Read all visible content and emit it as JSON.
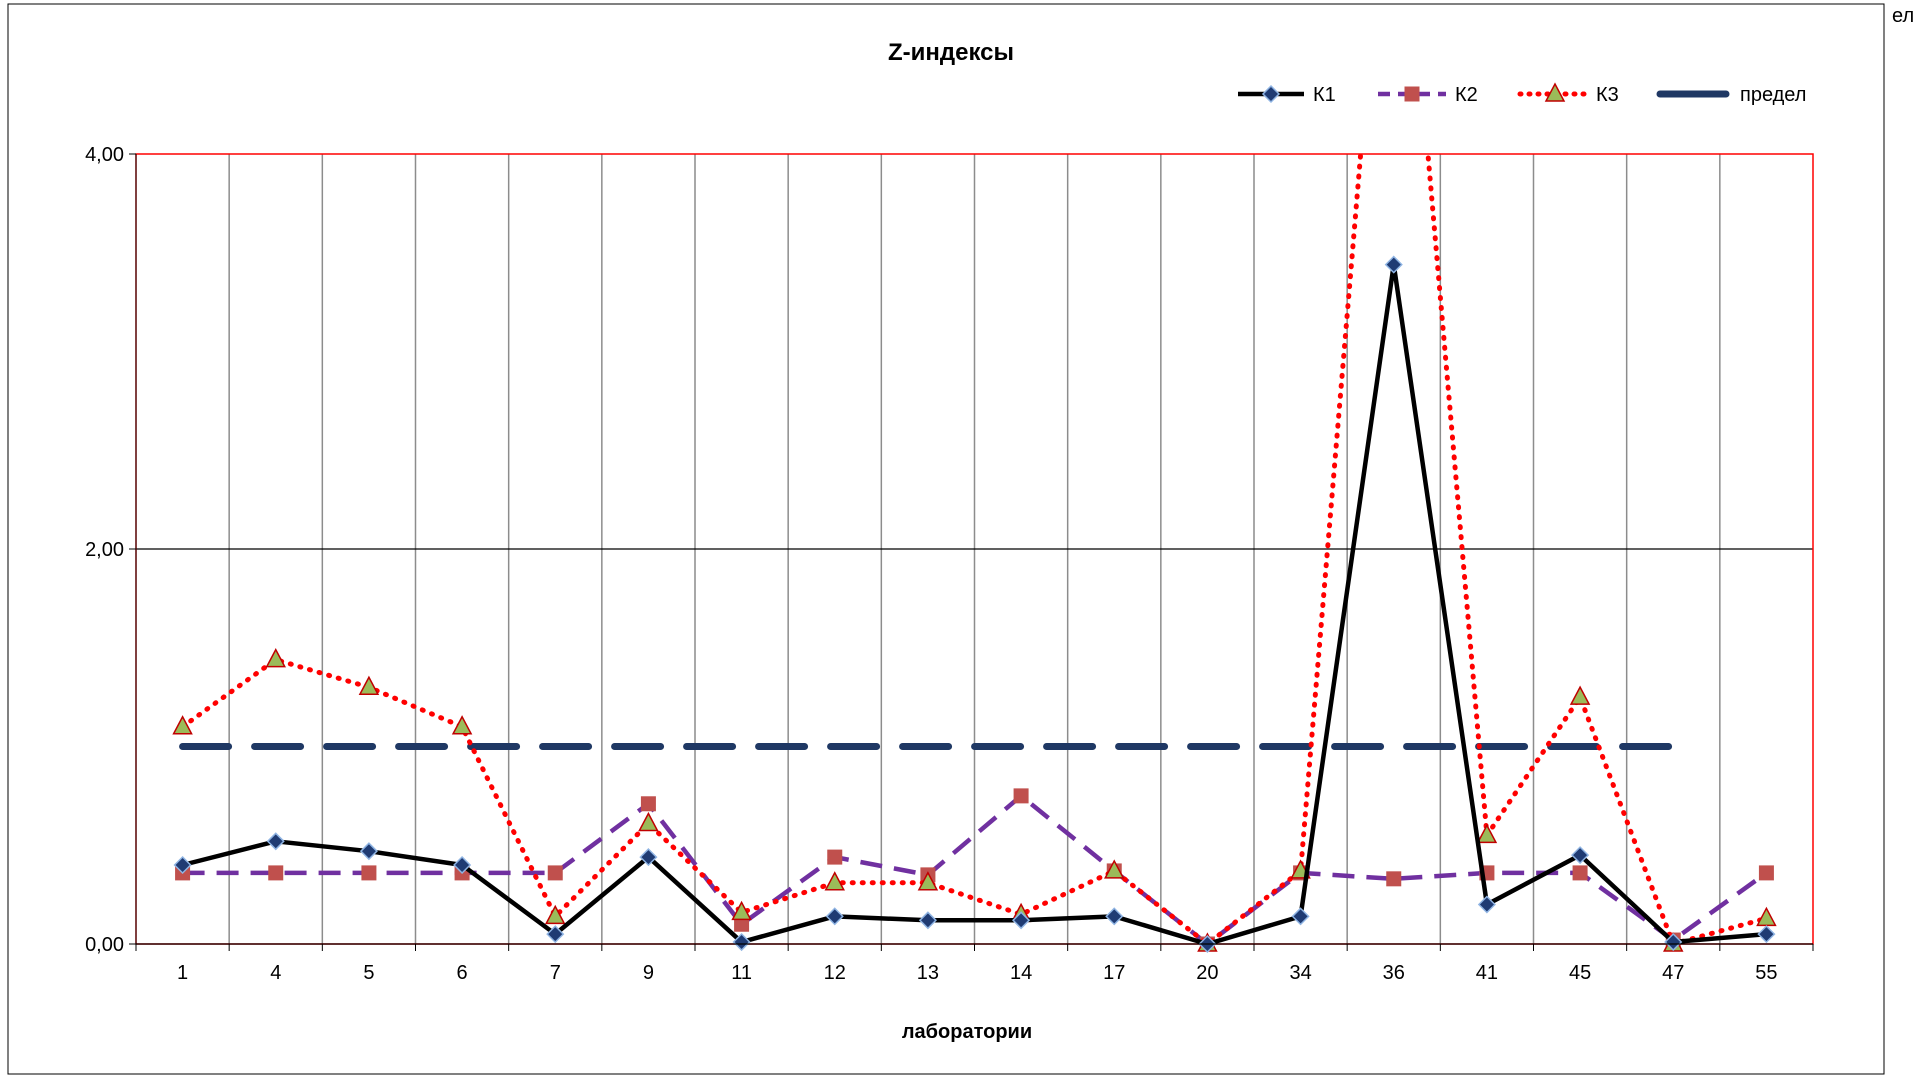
{
  "edge_text": "ел",
  "chart_data": {
    "type": "line",
    "title": "Z-индексы",
    "xlabel": "лаборатории",
    "ylabel": "",
    "categories": [
      "1",
      "4",
      "5",
      "6",
      "7",
      "9",
      "11",
      "12",
      "13",
      "14",
      "17",
      "20",
      "34",
      "36",
      "41",
      "45",
      "47",
      "55"
    ],
    "ylim": [
      0,
      4
    ],
    "yticks": [
      "0,00",
      "2,00",
      "4,00"
    ],
    "ytick_values": [
      0,
      2,
      4
    ],
    "grid": true,
    "legend_position": "top-right",
    "series": [
      {
        "name": "К1",
        "color": "#000000",
        "marker": "diamond",
        "marker_fill": "#1f3b73",
        "marker_stroke": "#8fb4e3",
        "dash": "solid",
        "values": [
          0.4,
          0.52,
          0.47,
          0.4,
          0.05,
          0.44,
          0.01,
          0.14,
          0.12,
          0.12,
          0.14,
          0.0,
          0.14,
          3.44,
          0.2,
          0.45,
          0.01,
          0.05
        ]
      },
      {
        "name": "К2",
        "color": "#7030a0",
        "marker": "square",
        "marker_fill": "#c0504d",
        "marker_stroke": "#c0504d",
        "dash": "dashed",
        "values": [
          0.36,
          0.36,
          0.36,
          0.36,
          0.36,
          0.71,
          0.1,
          0.44,
          0.35,
          0.75,
          0.37,
          0.0,
          0.36,
          0.33,
          0.36,
          0.36,
          0.02,
          0.36
        ]
      },
      {
        "name": "К3",
        "color": "#ff0000",
        "marker": "triangle",
        "marker_fill": "#9bbb59",
        "marker_stroke": "#c00000",
        "dash": "dotted",
        "values": [
          1.1,
          1.44,
          1.3,
          1.1,
          0.14,
          0.61,
          0.16,
          0.31,
          0.31,
          0.15,
          0.37,
          0.0,
          0.37,
          6.0,
          0.55,
          1.25,
          0.0,
          0.13
        ]
      },
      {
        "name": "предел",
        "color": "#1f3864",
        "marker": "none",
        "dash": "longdash",
        "values": [
          1,
          1,
          1,
          1,
          1,
          1,
          1,
          1,
          1,
          1,
          1,
          1,
          1,
          1,
          1,
          1,
          1,
          null
        ]
      }
    ]
  }
}
